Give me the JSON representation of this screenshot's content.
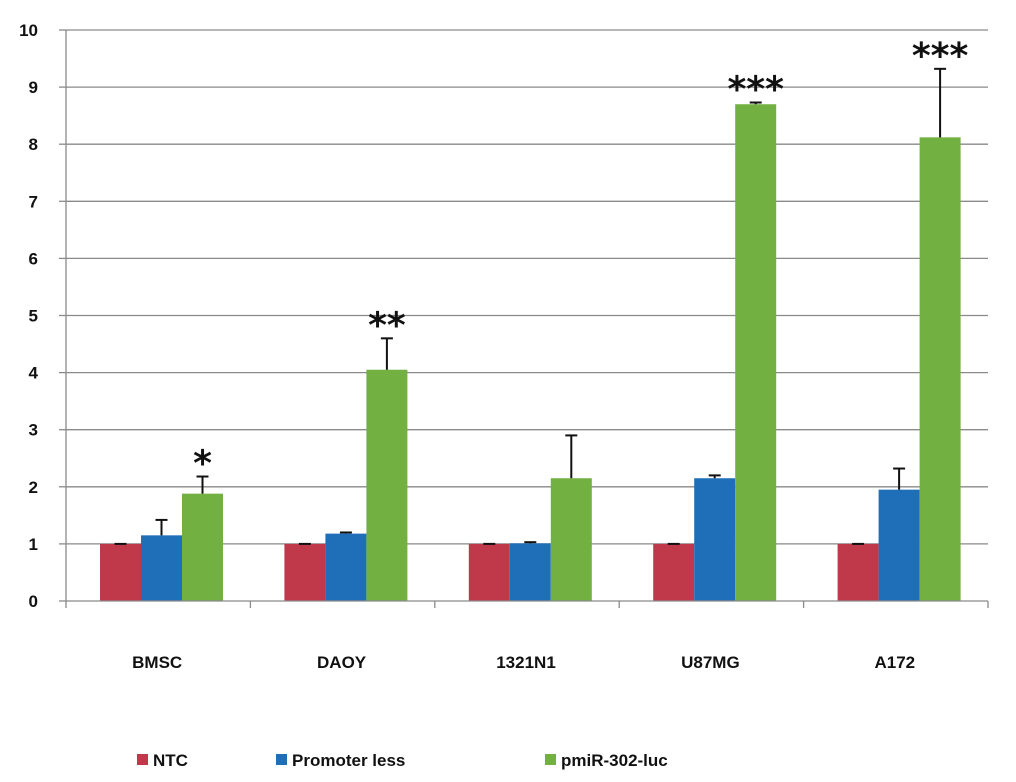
{
  "chart_data": {
    "type": "bar",
    "title": "",
    "xlabel": "",
    "ylabel": "",
    "ylim": [
      0,
      10
    ],
    "yticks": [
      0,
      1,
      2,
      3,
      4,
      5,
      6,
      7,
      8,
      9,
      10
    ],
    "grid": true,
    "legend_position": "bottom",
    "categories": [
      "BMSC",
      "DAOY",
      "1321N1",
      "U87MG",
      "A172"
    ],
    "series": [
      {
        "name": "NTC",
        "color": "#c0394b",
        "values": [
          1,
          1,
          1,
          1,
          1
        ],
        "errors": [
          0,
          0,
          0,
          0,
          0
        ]
      },
      {
        "name": "Promoter less",
        "color": "#1f6fb8",
        "values": [
          1.15,
          1.18,
          1.01,
          2.15,
          1.95
        ],
        "errors": [
          0.27,
          0.02,
          0.02,
          0.05,
          0.37
        ]
      },
      {
        "name": "pmiR-302-luc",
        "color": "#72b041",
        "values": [
          1.88,
          4.05,
          2.15,
          8.7,
          8.12
        ],
        "errors": [
          0.3,
          0.55,
          0.75,
          0.03,
          1.2
        ]
      }
    ],
    "annotations": [
      {
        "category": "BMSC",
        "series": "pmiR-302-luc",
        "text": "*"
      },
      {
        "category": "DAOY",
        "series": "pmiR-302-luc",
        "text": "**"
      },
      {
        "category": "U87MG",
        "series": "pmiR-302-luc",
        "text": "***"
      },
      {
        "category": "A172",
        "series": "pmiR-302-luc",
        "text": "***"
      }
    ]
  }
}
